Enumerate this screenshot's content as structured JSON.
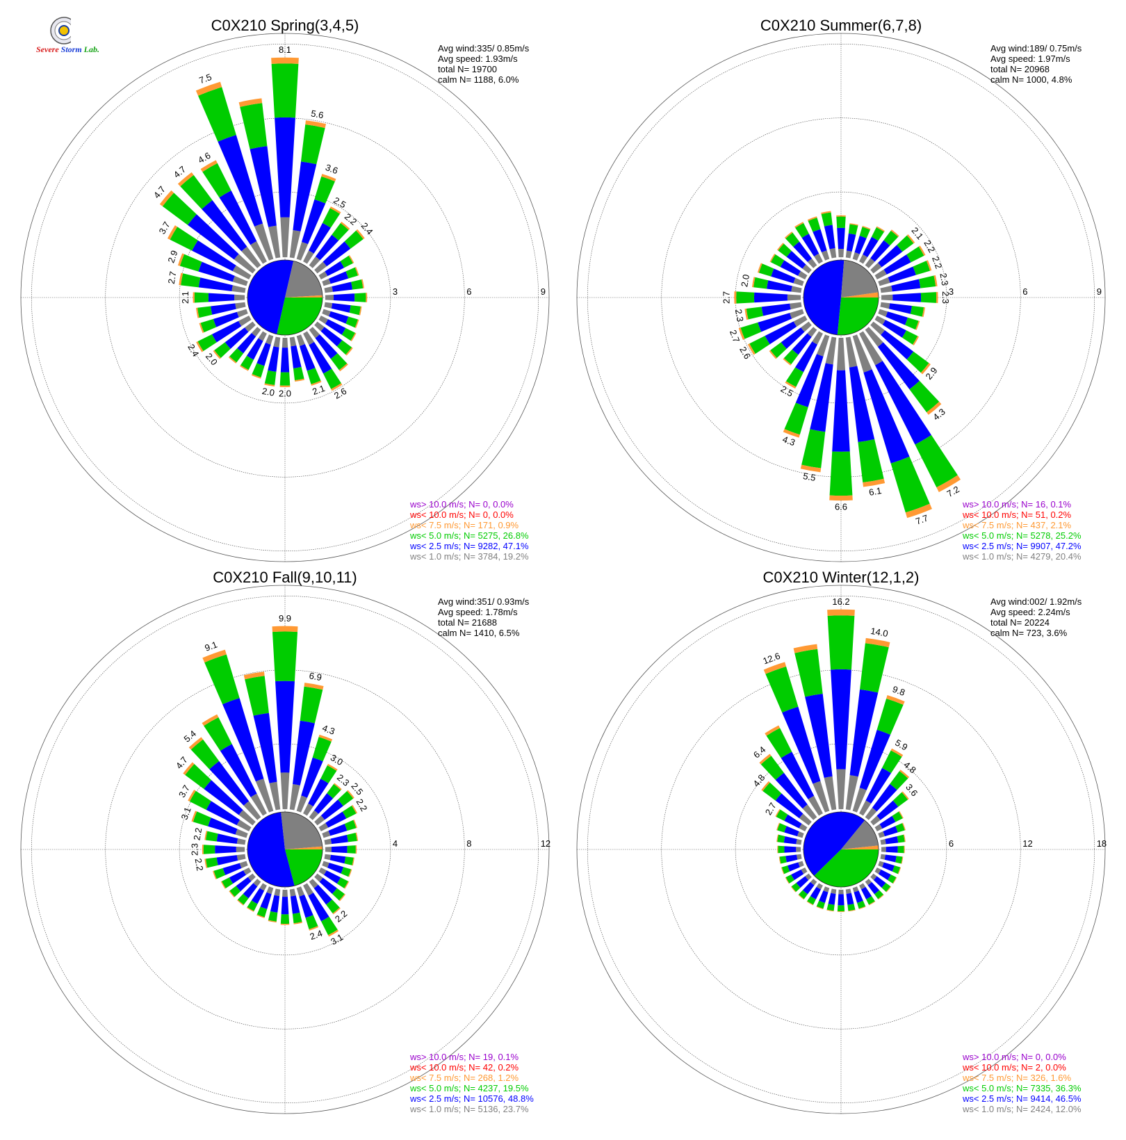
{
  "logo": {
    "text_severe": "Severe",
    "text_storm": "Storm",
    "text_lab": "Lab."
  },
  "colors": {
    "calm": "#888888",
    "lt1": "#808080",
    "lt2_5": "#0000ff",
    "lt5": "#00cc00",
    "lt7_5": "#ff9933",
    "lt10": "#ff0000",
    "gt10": "#9900cc"
  },
  "chart_data": [
    {
      "type": "windrose",
      "title": "C0X210 Spring(3,4,5)",
      "season": "spring",
      "ring_ticks": [
        "3",
        "6",
        "9"
      ],
      "rmax": 9,
      "stats": [
        "Avg wind:335/ 0.85m/s",
        "Avg speed: 1.93m/s",
        "total N=      19700",
        "calm N=   1188,   6.0%"
      ],
      "legend": [
        {
          "label": "ws> 10.0 m/s; N=      0,  0.0%",
          "color": "#9900cc"
        },
        {
          "label": "ws< 10.0 m/s; N=      0,  0.0%",
          "color": "#ff0000"
        },
        {
          "label": "ws<  7.5 m/s; N=    171,  0.9%",
          "color": "#ff9933"
        },
        {
          "label": "ws<  5.0 m/s; N=   5275, 26.8%",
          "color": "#00cc00"
        },
        {
          "label": "ws<  2.5 m/s; N=   9282, 47.1%",
          "color": "#0000ff"
        },
        {
          "label": "ws<  1.0 m/s; N=   3784, 19.2%",
          "color": "#808080"
        }
      ],
      "pie": [
        {
          "cls": "lt5",
          "pct": 26.8
        },
        {
          "cls": "lt2_5",
          "pct": 47.1
        },
        {
          "cls": "lt1",
          "pct": 19.2
        },
        {
          "cls": "lt7_5",
          "pct": 0.9
        }
      ],
      "bars": [
        {
          "dir": 0,
          "total": 8.1,
          "label": "8.1"
        },
        {
          "dir": 10,
          "total": 5.6,
          "label": "5.6"
        },
        {
          "dir": 20,
          "total": 3.6,
          "label": "3.6"
        },
        {
          "dir": 30,
          "total": 2.5,
          "label": "2.5"
        },
        {
          "dir": 40,
          "total": 2.2,
          "label": "2.2"
        },
        {
          "dir": 50,
          "total": 2.4,
          "label": "2.4"
        },
        {
          "dir": 60,
          "total": 1.5
        },
        {
          "dir": 70,
          "total": 1.5
        },
        {
          "dir": 80,
          "total": 1.6
        },
        {
          "dir": 90,
          "total": 1.7
        },
        {
          "dir": 100,
          "total": 1.5
        },
        {
          "dir": 110,
          "total": 1.5
        },
        {
          "dir": 120,
          "total": 1.6
        },
        {
          "dir": 130,
          "total": 1.8
        },
        {
          "dir": 140,
          "total": 2.1
        },
        {
          "dir": 150,
          "total": 2.6,
          "label": "2.6"
        },
        {
          "dir": 160,
          "total": 2.1,
          "label": "2.1"
        },
        {
          "dir": 170,
          "total": 1.8
        },
        {
          "dir": 180,
          "total": 2.0,
          "label": "2.0"
        },
        {
          "dir": 190,
          "total": 2.0,
          "label": "2.0"
        },
        {
          "dir": 200,
          "total": 1.8
        },
        {
          "dir": 210,
          "total": 1.7
        },
        {
          "dir": 220,
          "total": 1.7
        },
        {
          "dir": 230,
          "total": 2.0,
          "label": "2.0"
        },
        {
          "dir": 240,
          "total": 2.4,
          "label": "2.4"
        },
        {
          "dir": 250,
          "total": 2.0
        },
        {
          "dir": 260,
          "total": 2.0
        },
        {
          "dir": 270,
          "total": 2.1,
          "label": "2.1"
        },
        {
          "dir": 280,
          "total": 2.7,
          "label": "2.7"
        },
        {
          "dir": 290,
          "total": 2.9,
          "label": "2.9"
        },
        {
          "dir": 300,
          "total": 3.7,
          "label": "3.7"
        },
        {
          "dir": 310,
          "total": 4.7,
          "label": "4.7"
        },
        {
          "dir": 320,
          "total": 4.7,
          "label": "4.7"
        },
        {
          "dir": 330,
          "total": 4.6,
          "label": "4.6"
        },
        {
          "dir": 340,
          "total": 7.5,
          "label": "7.5"
        },
        {
          "dir": 350,
          "total": 6.5
        }
      ]
    },
    {
      "type": "windrose",
      "title": "C0X210 Summer(6,7,8)",
      "season": "summer",
      "ring_ticks": [
        "3",
        "6",
        "9"
      ],
      "rmax": 9,
      "stats": [
        "Avg wind:189/ 0.75m/s",
        "Avg speed: 1.97m/s",
        "total N=      20968",
        "calm N=   1000,   4.8%"
      ],
      "legend": [
        {
          "label": "ws> 10.0 m/s; N=     16,  0.1%",
          "color": "#9900cc"
        },
        {
          "label": "ws< 10.0 m/s; N=     51,  0.2%",
          "color": "#ff0000"
        },
        {
          "label": "ws<  7.5 m/s; N=    437,  2.1%",
          "color": "#ff9933"
        },
        {
          "label": "ws<  5.0 m/s; N=   5278, 25.2%",
          "color": "#00cc00"
        },
        {
          "label": "ws<  2.5 m/s; N=   9907, 47.2%",
          "color": "#0000ff"
        },
        {
          "label": "ws<  1.0 m/s; N=   4279, 20.4%",
          "color": "#808080"
        }
      ],
      "pie": [
        {
          "cls": "lt5",
          "pct": 25.2
        },
        {
          "cls": "lt2_5",
          "pct": 47.2
        },
        {
          "cls": "lt1",
          "pct": 20.4
        },
        {
          "cls": "lt7_5",
          "pct": 2.1
        }
      ],
      "bars": [
        {
          "dir": 0,
          "total": 1.7
        },
        {
          "dir": 10,
          "total": 1.4
        },
        {
          "dir": 20,
          "total": 1.4
        },
        {
          "dir": 30,
          "total": 1.6
        },
        {
          "dir": 40,
          "total": 1.8
        },
        {
          "dir": 50,
          "total": 2.1,
          "label": "2.1"
        },
        {
          "dir": 60,
          "total": 2.2,
          "label": "2.2"
        },
        {
          "dir": 70,
          "total": 2.2,
          "label": "2.2"
        },
        {
          "dir": 80,
          "total": 2.3,
          "label": "2.3"
        },
        {
          "dir": 90,
          "total": 2.3,
          "label": "2.3"
        },
        {
          "dir": 100,
          "total": 1.8
        },
        {
          "dir": 110,
          "total": 1.7
        },
        {
          "dir": 120,
          "total": 1.9
        },
        {
          "dir": 130,
          "total": 2.9,
          "label": "2.9"
        },
        {
          "dir": 140,
          "total": 4.3,
          "label": "4.3"
        },
        {
          "dir": 150,
          "total": 7.2,
          "label": "7.2"
        },
        {
          "dir": 160,
          "total": 7.7,
          "label": "7.7"
        },
        {
          "dir": 170,
          "total": 6.1,
          "label": "6.1"
        },
        {
          "dir": 180,
          "total": 6.6,
          "label": "6.6"
        },
        {
          "dir": 190,
          "total": 5.5,
          "label": "5.5"
        },
        {
          "dir": 200,
          "total": 4.3,
          "label": "4.3"
        },
        {
          "dir": 210,
          "total": 2.5,
          "label": "2.5"
        },
        {
          "dir": 220,
          "total": 1.8
        },
        {
          "dir": 230,
          "total": 2.0
        },
        {
          "dir": 240,
          "total": 2.6,
          "label": "2.6"
        },
        {
          "dir": 250,
          "total": 2.7,
          "label": "2.7"
        },
        {
          "dir": 260,
          "total": 2.3,
          "label": "2.3"
        },
        {
          "dir": 270,
          "total": 2.7,
          "label": "2.7"
        },
        {
          "dir": 280,
          "total": 2.0,
          "label": "2.0"
        },
        {
          "dir": 290,
          "total": 1.9
        },
        {
          "dir": 300,
          "total": 1.6
        },
        {
          "dir": 310,
          "total": 1.6
        },
        {
          "dir": 320,
          "total": 1.7
        },
        {
          "dir": 330,
          "total": 1.8
        },
        {
          "dir": 340,
          "total": 1.8
        },
        {
          "dir": 350,
          "total": 1.9
        }
      ]
    },
    {
      "type": "windrose",
      "title": "C0X210 Fall(9,10,11)",
      "season": "fall",
      "ring_ticks": [
        "4",
        "8",
        "12"
      ],
      "rmax": 12,
      "stats": [
        "Avg wind:351/ 0.93m/s",
        "Avg speed: 1.78m/s",
        "total N=      21688",
        "calm N=   1410,   6.5%"
      ],
      "legend": [
        {
          "label": "ws> 10.0 m/s; N=     19,  0.1%",
          "color": "#9900cc"
        },
        {
          "label": "ws< 10.0 m/s; N=     42,  0.2%",
          "color": "#ff0000"
        },
        {
          "label": "ws<  7.5 m/s; N=    268,  1.2%",
          "color": "#ff9933"
        },
        {
          "label": "ws<  5.0 m/s; N=   4237, 19.5%",
          "color": "#00cc00"
        },
        {
          "label": "ws<  2.5 m/s; N=  10576, 48.8%",
          "color": "#0000ff"
        },
        {
          "label": "ws<  1.0 m/s; N=   5136, 23.7%",
          "color": "#808080"
        }
      ],
      "pie": [
        {
          "cls": "lt5",
          "pct": 19.5
        },
        {
          "cls": "lt2_5",
          "pct": 48.8
        },
        {
          "cls": "lt1",
          "pct": 23.7
        },
        {
          "cls": "lt7_5",
          "pct": 1.2
        }
      ],
      "bars": [
        {
          "dir": 0,
          "total": 9.9,
          "label": "9.9"
        },
        {
          "dir": 10,
          "total": 6.9,
          "label": "6.9"
        },
        {
          "dir": 20,
          "total": 4.3,
          "label": "4.3"
        },
        {
          "dir": 30,
          "total": 3.0,
          "label": "3.0"
        },
        {
          "dir": 40,
          "total": 2.3,
          "label": "2.3"
        },
        {
          "dir": 50,
          "total": 2.5,
          "label": "2.5"
        },
        {
          "dir": 60,
          "total": 2.2,
          "label": "2.2"
        },
        {
          "dir": 70,
          "total": 1.9
        },
        {
          "dir": 80,
          "total": 1.8
        },
        {
          "dir": 90,
          "total": 1.7
        },
        {
          "dir": 100,
          "total": 1.6
        },
        {
          "dir": 110,
          "total": 1.6
        },
        {
          "dir": 120,
          "total": 1.7
        },
        {
          "dir": 130,
          "total": 1.9
        },
        {
          "dir": 140,
          "total": 2.2,
          "label": "2.2"
        },
        {
          "dir": 150,
          "total": 3.1,
          "label": "3.1"
        },
        {
          "dir": 160,
          "total": 2.4,
          "label": "2.4"
        },
        {
          "dir": 170,
          "total": 1.9
        },
        {
          "dir": 180,
          "total": 1.9
        },
        {
          "dir": 190,
          "total": 1.8
        },
        {
          "dir": 200,
          "total": 1.7
        },
        {
          "dir": 210,
          "total": 1.6
        },
        {
          "dir": 220,
          "total": 1.6
        },
        {
          "dir": 230,
          "total": 1.6
        },
        {
          "dir": 240,
          "total": 1.7
        },
        {
          "dir": 250,
          "total": 1.9
        },
        {
          "dir": 260,
          "total": 2.2,
          "label": "2.2"
        },
        {
          "dir": 270,
          "total": 2.3,
          "label": "2.3"
        },
        {
          "dir": 280,
          "total": 2.2,
          "label": "2.2"
        },
        {
          "dir": 290,
          "total": 3.1,
          "label": "3.1"
        },
        {
          "dir": 300,
          "total": 3.7,
          "label": "3.7"
        },
        {
          "dir": 310,
          "total": 4.7,
          "label": "4.7"
        },
        {
          "dir": 320,
          "total": 5.4,
          "label": "5.4"
        },
        {
          "dir": 330,
          "total": 6.0
        },
        {
          "dir": 340,
          "total": 9.1,
          "label": "9.1"
        },
        {
          "dir": 350,
          "total": 7.5
        }
      ]
    },
    {
      "type": "windrose",
      "title": "C0X210 Winter(12,1,2)",
      "season": "winter",
      "ring_ticks": [
        "6",
        "12",
        "18"
      ],
      "rmax": 18,
      "stats": [
        "Avg wind:002/ 1.92m/s",
        "Avg speed: 2.24m/s",
        "total N=      20224",
        "calm N=    723,   3.6%"
      ],
      "legend": [
        {
          "label": "ws> 10.0 m/s; N=      0,  0.0%",
          "color": "#9900cc"
        },
        {
          "label": "ws< 10.0 m/s; N=      2,  0.0%",
          "color": "#ff0000"
        },
        {
          "label": "ws<  7.5 m/s; N=    326,  1.6%",
          "color": "#ff9933"
        },
        {
          "label": "ws<  5.0 m/s; N=   7335, 36.3%",
          "color": "#00cc00"
        },
        {
          "label": "ws<  2.5 m/s; N=   9414, 46.5%",
          "color": "#0000ff"
        },
        {
          "label": "ws<  1.0 m/s; N=   2424, 12.0%",
          "color": "#808080"
        }
      ],
      "pie": [
        {
          "cls": "lt5",
          "pct": 36.3
        },
        {
          "cls": "lt2_5",
          "pct": 46.5
        },
        {
          "cls": "lt1",
          "pct": 12.0
        },
        {
          "cls": "lt7_5",
          "pct": 1.6
        }
      ],
      "bars": [
        {
          "dir": 0,
          "total": 16.2,
          "label": "16.2"
        },
        {
          "dir": 10,
          "total": 14.0,
          "label": "14.0"
        },
        {
          "dir": 20,
          "total": 9.8,
          "label": "9.8"
        },
        {
          "dir": 30,
          "total": 5.9,
          "label": "5.9"
        },
        {
          "dir": 40,
          "total": 4.8,
          "label": "4.8"
        },
        {
          "dir": 50,
          "total": 3.6,
          "label": "3.6"
        },
        {
          "dir": 60,
          "total": 2.4
        },
        {
          "dir": 70,
          "total": 2.2
        },
        {
          "dir": 80,
          "total": 2.0
        },
        {
          "dir": 90,
          "total": 1.9
        },
        {
          "dir": 100,
          "total": 1.8
        },
        {
          "dir": 110,
          "total": 1.8
        },
        {
          "dir": 120,
          "total": 1.8
        },
        {
          "dir": 130,
          "total": 1.8
        },
        {
          "dir": 140,
          "total": 1.8
        },
        {
          "dir": 150,
          "total": 1.8
        },
        {
          "dir": 160,
          "total": 1.8
        },
        {
          "dir": 170,
          "total": 1.8
        },
        {
          "dir": 180,
          "total": 1.8
        },
        {
          "dir": 190,
          "total": 1.8
        },
        {
          "dir": 200,
          "total": 1.8
        },
        {
          "dir": 210,
          "total": 1.8
        },
        {
          "dir": 220,
          "total": 1.8
        },
        {
          "dir": 230,
          "total": 1.8
        },
        {
          "dir": 240,
          "total": 1.8
        },
        {
          "dir": 250,
          "total": 1.8
        },
        {
          "dir": 260,
          "total": 1.8
        },
        {
          "dir": 270,
          "total": 1.9
        },
        {
          "dir": 280,
          "total": 2.0
        },
        {
          "dir": 290,
          "total": 2.2
        },
        {
          "dir": 300,
          "total": 2.7,
          "label": "2.7"
        },
        {
          "dir": 310,
          "total": 4.8,
          "label": "4.8"
        },
        {
          "dir": 320,
          "total": 6.4,
          "label": "6.4"
        },
        {
          "dir": 330,
          "total": 8.0
        },
        {
          "dir": 340,
          "total": 12.6,
          "label": "12.6"
        },
        {
          "dir": 350,
          "total": 13.5
        }
      ]
    }
  ]
}
